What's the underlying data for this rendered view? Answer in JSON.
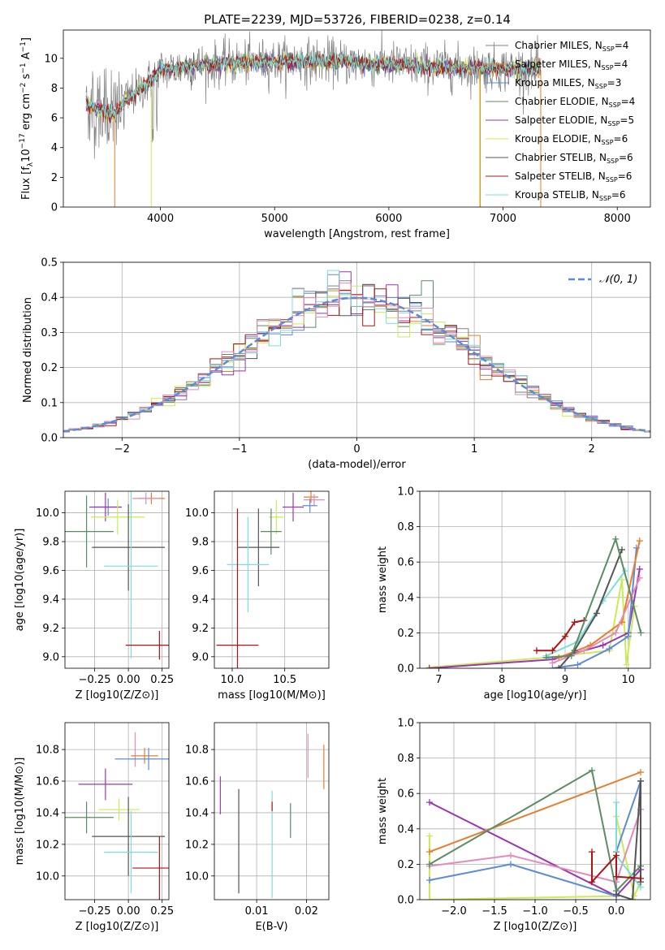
{
  "title": "PLATE=2239, MJD=53726, FIBERID=0238, z=0.14",
  "colors": {
    "grey": "#808080",
    "orange": "#e87d2c",
    "blue": "#5b8bd9",
    "green": "#5b8c64",
    "purple": "#9b35b3",
    "lime": "#c9ec55",
    "dark": "#555555",
    "red": "#b01313",
    "cyan": "#7fdcdc",
    "pink": "#e58ab8",
    "dashed": "#5b8bd9"
  },
  "chart_data": [
    {
      "id": "spectrum",
      "type": "line",
      "xlabel": "wavelength [Angstrom, rest frame]",
      "ylabel": "Flux [f_λ 10^-17 erg cm^-2 s^-1 A^-1]",
      "ylabel_parts": {
        "a": "Flux [f",
        "b": "λ",
        "c": "10",
        "d": "−17",
        "e": " erg cm",
        "f": "−2",
        "g": " s",
        "h": "−1",
        "i": " A",
        "j": "−1",
        "k": "]"
      },
      "xlim": [
        3150,
        8290
      ],
      "ylim": [
        0,
        11.9
      ],
      "xticks": [
        "4000",
        "5000",
        "6000",
        "7000",
        "8000"
      ],
      "yticks": [
        "0",
        "2",
        "4",
        "6",
        "8",
        "10"
      ],
      "legend_placement": "upper-right",
      "legend": [
        {
          "pre": "Chabrier MILES, N",
          "sub": "SSP",
          "post": "=4",
          "color": "grey"
        },
        {
          "pre": "Salpeter MILES, N",
          "sub": "SSP",
          "post": "=4",
          "color": "orange"
        },
        {
          "pre": "Kroupa MILES, N",
          "sub": "SSP",
          "post": "=3",
          "color": "blue"
        },
        {
          "pre": "Chabrier ELODIE, N",
          "sub": "SSP",
          "post": "=4",
          "color": "green"
        },
        {
          "pre": "Salpeter ELODIE, N",
          "sub": "SSP",
          "post": "=5",
          "color": "purple"
        },
        {
          "pre": "Kroupa ELODIE, N",
          "sub": "SSP",
          "post": "=6",
          "color": "lime"
        },
        {
          "pre": "Chabrier STELIB, N",
          "sub": "SSP",
          "post": "=6",
          "color": "dark"
        },
        {
          "pre": "Salpeter STELIB, N",
          "sub": "SSP",
          "post": "=6",
          "color": "red"
        },
        {
          "pre": "Kroupa STELIB, N",
          "sub": "SSP",
          "post": "=6",
          "color": "cyan"
        }
      ],
      "continuum": [
        [
          3350,
          6.8
        ],
        [
          3600,
          6.2
        ],
        [
          3700,
          7.2
        ],
        [
          3900,
          8.4
        ],
        [
          4000,
          9.2
        ],
        [
          4300,
          9.5
        ],
        [
          4700,
          9.7
        ],
        [
          5000,
          9.8
        ],
        [
          5500,
          9.8
        ],
        [
          6000,
          9.6
        ],
        [
          6500,
          9.4
        ],
        [
          7000,
          9.3
        ],
        [
          7300,
          9.2
        ]
      ],
      "model_ranges": [
        [
          3350,
          7330
        ],
        [
          3350,
          7330
        ],
        [
          3350,
          7330
        ],
        [
          3350,
          7330
        ],
        [
          3350,
          7330
        ],
        [
          3350,
          7330
        ],
        [
          3350,
          7330
        ],
        [
          3350,
          7330
        ],
        [
          3350,
          7330
        ]
      ]
    },
    {
      "id": "residual-histogram",
      "type": "line",
      "xlabel": "(data-model)/error",
      "ylabel": "Normed distribution",
      "xlim": [
        -2.5,
        2.5
      ],
      "ylim": [
        0,
        0.5
      ],
      "xticks": [
        "−2",
        "−1",
        "0",
        "1",
        "2"
      ],
      "yticks": [
        "0.0",
        "0.1",
        "0.2",
        "0.3",
        "0.4",
        "0.5"
      ],
      "legend_placement": "upper-right",
      "legend": [
        {
          "label": "𝒩(0, 1)",
          "color": "dashed"
        }
      ],
      "bin_width": 0.1,
      "series_colors": [
        "grey",
        "orange",
        "blue",
        "green",
        "purple",
        "lime",
        "dark",
        "red",
        "cyan",
        "pink"
      ]
    },
    {
      "id": "age-vs-Z",
      "type": "scatter",
      "xlabel": "Z [log10(Z/Z⊙)]",
      "ylabel": "age  [log10(age/yr)]",
      "xlim": [
        -0.47,
        0.3
      ],
      "ylim": [
        8.92,
        10.15
      ],
      "xticks": [
        "−0.25",
        "0.00",
        "0.25"
      ],
      "yticks": [
        "9.0",
        "9.2",
        "9.4",
        "9.6",
        "9.8",
        "10.0"
      ],
      "points": [
        {
          "x": 0.17,
          "y": 10.1,
          "xerr": 0.1,
          "yerr": 0.04,
          "color": "orange"
        },
        {
          "x": 0.13,
          "y": 10.1,
          "xerr": 0.1,
          "yerr": 0.04,
          "color": "pink"
        },
        {
          "x": -0.15,
          "y": 10.04,
          "xerr": 0.1,
          "yerr": 0.06,
          "color": "blue"
        },
        {
          "x": -0.17,
          "y": 10.04,
          "xerr": 0.12,
          "yerr": 0.1,
          "color": "purple"
        },
        {
          "x": -0.08,
          "y": 9.97,
          "xerr": 0.2,
          "yerr": 0.12,
          "color": "lime"
        },
        {
          "x": -0.31,
          "y": 9.87,
          "xerr": 0.2,
          "yerr": 0.25,
          "color": "green"
        },
        {
          "x": 0.0,
          "y": 9.76,
          "xerr": 0.27,
          "yerr": 0.3,
          "color": "dark"
        },
        {
          "x": 0.02,
          "y": 9.63,
          "xerr": 0.2,
          "yerr": 0.64,
          "color": "cyan"
        },
        {
          "x": 0.23,
          "y": 9.08,
          "xerr": 0.25,
          "yerr": 0.1,
          "color": "red"
        }
      ]
    },
    {
      "id": "age-vs-mass",
      "type": "scatter",
      "xlabel": "mass [log10(M/M⊙)]",
      "ylabel": "",
      "xlim": [
        9.83,
        10.92
      ],
      "ylim": [
        8.92,
        10.15
      ],
      "xticks": [
        "10.0",
        "10.5"
      ],
      "yticks": [
        "9.0",
        "9.2",
        "9.4",
        "9.6",
        "9.8",
        "10.0"
      ],
      "points": [
        {
          "x": 10.75,
          "y": 10.11,
          "xerr": 0.07,
          "yerr": 0.04,
          "color": "orange"
        },
        {
          "x": 10.78,
          "y": 10.09,
          "xerr": 0.1,
          "yerr": 0.04,
          "color": "pink"
        },
        {
          "x": 10.74,
          "y": 10.05,
          "xerr": 0.07,
          "yerr": 0.05,
          "color": "blue"
        },
        {
          "x": 10.58,
          "y": 10.04,
          "xerr": 0.1,
          "yerr": 0.1,
          "color": "purple"
        },
        {
          "x": 10.42,
          "y": 9.97,
          "xerr": 0.07,
          "yerr": 0.12,
          "color": "lime"
        },
        {
          "x": 10.37,
          "y": 9.87,
          "xerr": 0.1,
          "yerr": 0.16,
          "color": "green"
        },
        {
          "x": 10.25,
          "y": 9.76,
          "xerr": 0.2,
          "yerr": 0.27,
          "color": "dark"
        },
        {
          "x": 10.15,
          "y": 9.64,
          "xerr": 0.2,
          "yerr": 0.33,
          "color": "cyan"
        },
        {
          "x": 10.05,
          "y": 9.08,
          "xerr": 0.2,
          "yerr": 0.95,
          "color": "red"
        }
      ]
    },
    {
      "id": "massweight-vs-age",
      "type": "line",
      "xlabel": "age  [log10(age/yr)]",
      "ylabel": "mass weight",
      "xlim": [
        6.7,
        10.35
      ],
      "ylim": [
        0,
        1.0
      ],
      "xticks": [
        "7",
        "8",
        "9",
        "10"
      ],
      "yticks": [
        "0.0",
        "0.2",
        "0.4",
        "0.6",
        "0.8",
        "1.0"
      ],
      "series": [
        {
          "color": "lime",
          "points": [
            [
              6.85,
              0.005
            ],
            [
              8.7,
              0.06
            ],
            [
              9.7,
              0.1
            ],
            [
              9.9,
              0.5
            ],
            [
              9.97,
              0.02
            ],
            [
              10.1,
              0.35
            ]
          ]
        },
        {
          "color": "purple",
          "points": [
            [
              6.85,
              0.0
            ],
            [
              8.8,
              0.05
            ],
            [
              9.6,
              0.13
            ],
            [
              10.0,
              0.2
            ],
            [
              10.18,
              0.56
            ]
          ]
        },
        {
          "color": "blue",
          "points": [
            [
              8.8,
              0.0
            ],
            [
              9.2,
              0.02
            ],
            [
              9.7,
              0.11
            ],
            [
              10.0,
              0.18
            ],
            [
              10.13,
              0.68
            ]
          ]
        },
        {
          "color": "orange",
          "points": [
            [
              8.9,
              0.06
            ],
            [
              9.4,
              0.13
            ],
            [
              9.9,
              0.26
            ],
            [
              10.18,
              0.72
            ]
          ]
        },
        {
          "color": "pink",
          "points": [
            [
              8.8,
              0.03
            ],
            [
              9.3,
              0.1
            ],
            [
              9.8,
              0.2
            ],
            [
              10.18,
              0.51
            ]
          ]
        },
        {
          "color": "cyan",
          "points": [
            [
              8.7,
              0.07
            ],
            [
              9.2,
              0.15
            ],
            [
              9.6,
              0.38
            ],
            [
              9.95,
              0.55
            ]
          ]
        },
        {
          "color": "dark",
          "points": [
            [
              8.9,
              0.0
            ],
            [
              9.15,
              0.1
            ],
            [
              9.5,
              0.31
            ],
            [
              9.9,
              0.67
            ]
          ]
        },
        {
          "color": "red",
          "points": [
            [
              8.55,
              0.1
            ],
            [
              8.8,
              0.1
            ],
            [
              9.0,
              0.18
            ],
            [
              9.15,
              0.26
            ],
            [
              9.3,
              0.27
            ]
          ]
        },
        {
          "color": "green",
          "points": [
            [
              8.7,
              0.06
            ],
            [
              9.1,
              0.07
            ],
            [
              9.8,
              0.73
            ],
            [
              10.2,
              0.2
            ]
          ]
        }
      ]
    },
    {
      "id": "mass-vs-Z",
      "type": "scatter",
      "xlabel": "Z [log10(Z/Z⊙)]",
      "ylabel": "mass [log10(M/M⊙)]",
      "xlim": [
        -0.47,
        0.3
      ],
      "ylim": [
        9.85,
        10.97
      ],
      "xticks": [
        "−0.25",
        "0.00",
        "0.25"
      ],
      "yticks": [
        "10.0",
        "10.2",
        "10.4",
        "10.6",
        "10.8"
      ],
      "points": [
        {
          "x": 0.05,
          "y": 10.8,
          "xerr": 0.0,
          "yerr": 0.11,
          "color": "pink"
        },
        {
          "x": 0.12,
          "y": 10.76,
          "xerr": 0.1,
          "yerr": 0.05,
          "color": "orange"
        },
        {
          "x": 0.15,
          "y": 10.74,
          "xerr": 0.25,
          "yerr": 0.07,
          "color": "blue"
        },
        {
          "x": -0.17,
          "y": 10.58,
          "xerr": 0.2,
          "yerr": 0.1,
          "color": "purple"
        },
        {
          "x": -0.07,
          "y": 10.42,
          "xerr": 0.15,
          "yerr": 0.07,
          "color": "lime"
        },
        {
          "x": -0.31,
          "y": 10.37,
          "xerr": 0.2,
          "yerr": 0.1,
          "color": "green"
        },
        {
          "x": 0.0,
          "y": 10.25,
          "xerr": 0.27,
          "yerr": 0.25,
          "color": "dark"
        },
        {
          "x": 0.02,
          "y": 10.15,
          "xerr": 0.2,
          "yerr": 0.26,
          "color": "cyan"
        },
        {
          "x": 0.23,
          "y": 10.05,
          "xerr": 0.2,
          "yerr": 0.2,
          "color": "red"
        }
      ]
    },
    {
      "id": "mass-vs-EBV",
      "type": "scatter",
      "xlabel": "E(B-V)",
      "ylabel": "",
      "xlim": [
        0.0015,
        0.0245
      ],
      "ylim": [
        9.85,
        10.97
      ],
      "xticks": [
        "0.01",
        "0.02"
      ],
      "yticks": [
        "10.0",
        "10.2",
        "10.4",
        "10.6",
        "10.8"
      ],
      "points": [
        {
          "x": 0.0203,
          "y": 10.76,
          "xerr": 0.0,
          "yerr": 0.14,
          "color": "pink"
        },
        {
          "x": 0.0235,
          "y": 10.69,
          "xerr": 0.0,
          "yerr": 0.14,
          "color": "orange"
        },
        {
          "x": 0.0027,
          "y": 10.51,
          "xerr": 0.0,
          "yerr": 0.12,
          "color": "purple"
        },
        {
          "x": 0.0168,
          "y": 10.35,
          "xerr": 0.0,
          "yerr": 0.11,
          "color": "green"
        },
        {
          "x": 0.0064,
          "y": 10.22,
          "xerr": 0.0,
          "yerr": 0.33,
          "color": "dark"
        },
        {
          "x": 0.0131,
          "y": 10.2,
          "xerr": 0.0,
          "yerr": 0.34,
          "color": "cyan"
        },
        {
          "x": 0.0131,
          "y": 10.44,
          "xerr": 0.0,
          "yerr": 0.03,
          "color": "red"
        }
      ]
    },
    {
      "id": "massweight-vs-Z",
      "type": "line",
      "xlabel": "Z [log10(Z/Z⊙)]",
      "ylabel": "mass weight",
      "xlim": [
        -2.42,
        0.42
      ],
      "ylim": [
        0,
        1.0
      ],
      "xticks": [
        "−2.0",
        "−1.5",
        "−1.0",
        "−0.5",
        "0.0"
      ],
      "yticks": [
        "0.0",
        "0.2",
        "0.4",
        "0.6",
        "0.8",
        "1.0"
      ],
      "series": [
        {
          "color": "lime",
          "points": [
            [
              -2.3,
              0.36
            ],
            [
              -2.3,
              0.0
            ],
            [
              0.0,
              0.02
            ],
            [
              0.0,
              0.47
            ],
            [
              0.22,
              0.02
            ],
            [
              0.3,
              0.1
            ]
          ]
        },
        {
          "color": "purple",
          "points": [
            [
              -2.3,
              0.55
            ],
            [
              0.0,
              0.02
            ],
            [
              0.3,
              0.17
            ]
          ]
        },
        {
          "color": "orange",
          "points": [
            [
              -2.3,
              0.27
            ],
            [
              0.3,
              0.72
            ]
          ]
        },
        {
          "color": "blue",
          "points": [
            [
              -2.3,
              0.11
            ],
            [
              -1.3,
              0.2
            ],
            [
              0.0,
              0.02
            ],
            [
              0.0,
              0.27
            ],
            [
              0.3,
              0.67
            ]
          ]
        },
        {
          "color": "pink",
          "points": [
            [
              -2.3,
              0.19
            ],
            [
              -1.3,
              0.25
            ],
            [
              0.0,
              0.1
            ],
            [
              0.3,
              0.51
            ]
          ]
        },
        {
          "color": "green",
          "points": [
            [
              -2.3,
              0.2
            ],
            [
              -0.3,
              0.73
            ],
            [
              0.0,
              0.05
            ],
            [
              0.3,
              0.19
            ]
          ]
        },
        {
          "color": "cyan",
          "points": [
            [
              0.0,
              0.55
            ],
            [
              0.0,
              0.25
            ],
            [
              0.3,
              0.07
            ]
          ]
        },
        {
          "color": "dark",
          "points": [
            [
              0.0,
              0.03
            ],
            [
              0.2,
              0.0
            ],
            [
              0.3,
              0.67
            ],
            [
              0.3,
              0.1
            ]
          ]
        },
        {
          "color": "red",
          "points": [
            [
              -0.3,
              0.27
            ],
            [
              -0.3,
              0.1
            ],
            [
              0.0,
              0.25
            ],
            [
              0.0,
              0.13
            ],
            [
              0.3,
              0.12
            ]
          ]
        }
      ]
    }
  ]
}
